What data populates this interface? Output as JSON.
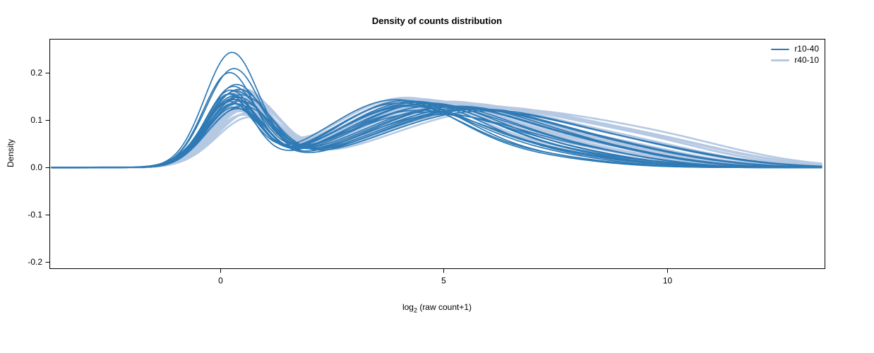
{
  "chart_data": {
    "type": "line",
    "title": "Density of counts distribution",
    "xlabel": "log2 (raw count+1)",
    "xlabel_parts": {
      "pre": "log",
      "sub": "2",
      "post": " (raw count+1)"
    },
    "ylabel": "Density",
    "xlim": [
      -3.82,
      13.52
    ],
    "ylim": [
      -0.213,
      0.272
    ],
    "xtick_values": [
      0,
      5,
      10
    ],
    "xtick_labels": [
      "0",
      "5",
      "10"
    ],
    "ytick_values": [
      -0.2,
      -0.1,
      0,
      0.1,
      0.2
    ],
    "ytick_labels": [
      "-0.2",
      "-0.1",
      "0.0",
      "0.1",
      "0.2"
    ],
    "grid": false,
    "legend_position": "top-right",
    "curve_model": "each curve = sum of three gaussian bumps [mean, sd, amplitude] * 3",
    "series": [
      {
        "name": "r10-40",
        "color": "#2f7ab5",
        "line_width": 1.7,
        "curves": [
          [
            0.25,
            0.6,
            0.235,
            4.6,
            1.9,
            0.115,
            8.0,
            1.6,
            0.02
          ],
          [
            0.3,
            0.62,
            0.205,
            4.9,
            1.8,
            0.11,
            8.3,
            1.5,
            0.025
          ],
          [
            0.2,
            0.58,
            0.195,
            4.4,
            1.7,
            0.12,
            7.8,
            1.4,
            0.02
          ],
          [
            0.35,
            0.65,
            0.17,
            5.1,
            1.9,
            0.125,
            8.6,
            1.6,
            0.03
          ],
          [
            0.28,
            0.6,
            0.165,
            4.2,
            1.6,
            0.13,
            7.5,
            1.5,
            0.025
          ],
          [
            0.4,
            0.7,
            0.16,
            5.4,
            2.0,
            0.12,
            8.9,
            1.7,
            0.03
          ],
          [
            0.22,
            0.57,
            0.158,
            4.0,
            1.5,
            0.135,
            7.2,
            1.4,
            0.02
          ],
          [
            0.33,
            0.63,
            0.155,
            4.7,
            1.8,
            0.128,
            8.1,
            1.5,
            0.028
          ],
          [
            0.18,
            0.55,
            0.15,
            4.5,
            1.7,
            0.132,
            7.9,
            1.6,
            0.022
          ],
          [
            0.45,
            0.72,
            0.148,
            5.6,
            2.1,
            0.118,
            9.2,
            1.8,
            0.035
          ],
          [
            0.27,
            0.6,
            0.145,
            4.3,
            1.6,
            0.138,
            7.6,
            1.5,
            0.02
          ],
          [
            0.38,
            0.66,
            0.142,
            5.0,
            1.9,
            0.125,
            8.4,
            1.6,
            0.03
          ],
          [
            0.24,
            0.58,
            0.14,
            4.1,
            1.5,
            0.14,
            7.3,
            1.4,
            0.018
          ],
          [
            0.31,
            0.62,
            0.138,
            4.8,
            1.8,
            0.13,
            8.2,
            1.5,
            0.026
          ],
          [
            0.42,
            0.7,
            0.135,
            5.3,
            2.0,
            0.122,
            8.8,
            1.7,
            0.032
          ],
          [
            0.2,
            0.56,
            0.133,
            3.9,
            1.5,
            0.142,
            7.1,
            1.4,
            0.018
          ],
          [
            0.35,
            0.64,
            0.13,
            5.2,
            1.9,
            0.126,
            8.5,
            1.6,
            0.028
          ],
          [
            0.26,
            0.59,
            0.128,
            4.4,
            1.7,
            0.136,
            7.7,
            1.5,
            0.022
          ],
          [
            0.48,
            0.74,
            0.125,
            5.7,
            2.1,
            0.115,
            9.4,
            1.8,
            0.034
          ],
          [
            0.29,
            0.61,
            0.122,
            4.6,
            1.7,
            0.134,
            7.9,
            1.5,
            0.024
          ],
          [
            0.37,
            0.66,
            0.12,
            5.5,
            2.0,
            0.12,
            9.0,
            1.7,
            0.03
          ],
          [
            0.23,
            0.57,
            0.15,
            4.2,
            1.6,
            0.128,
            7.4,
            1.4,
            0.02
          ]
        ]
      },
      {
        "name": "r40-10",
        "color": "#b6c9e3",
        "line_width": 2.6,
        "curves": [
          [
            0.5,
            0.68,
            0.155,
            4.8,
            1.9,
            0.135,
            8.5,
            1.7,
            0.04
          ],
          [
            0.55,
            0.7,
            0.15,
            5.2,
            2.0,
            0.13,
            8.9,
            1.8,
            0.045
          ],
          [
            0.45,
            0.66,
            0.148,
            4.5,
            1.8,
            0.14,
            8.1,
            1.6,
            0.035
          ],
          [
            0.6,
            0.72,
            0.145,
            5.5,
            2.1,
            0.125,
            9.3,
            1.8,
            0.05
          ],
          [
            0.42,
            0.65,
            0.142,
            4.3,
            1.7,
            0.142,
            7.8,
            1.6,
            0.035
          ],
          [
            0.58,
            0.71,
            0.138,
            5.0,
            1.9,
            0.135,
            8.7,
            1.7,
            0.042
          ],
          [
            0.48,
            0.67,
            0.135,
            4.6,
            1.8,
            0.138,
            8.3,
            1.6,
            0.038
          ],
          [
            0.65,
            0.74,
            0.132,
            5.8,
            2.1,
            0.12,
            9.6,
            1.9,
            0.05
          ],
          [
            0.4,
            0.64,
            0.13,
            4.1,
            1.6,
            0.145,
            7.5,
            1.5,
            0.032
          ],
          [
            0.55,
            0.7,
            0.128,
            5.3,
            2.0,
            0.128,
            9.0,
            1.8,
            0.045
          ],
          [
            0.5,
            0.68,
            0.125,
            4.9,
            1.9,
            0.134,
            8.6,
            1.7,
            0.04
          ],
          [
            0.62,
            0.73,
            0.122,
            5.6,
            2.1,
            0.122,
            9.4,
            1.8,
            0.048
          ],
          [
            0.44,
            0.66,
            0.12,
            4.4,
            1.7,
            0.14,
            8.0,
            1.6,
            0.035
          ],
          [
            0.57,
            0.7,
            0.118,
            5.1,
            1.9,
            0.13,
            8.8,
            1.7,
            0.042
          ],
          [
            0.47,
            0.67,
            0.115,
            4.7,
            1.8,
            0.136,
            8.4,
            1.6,
            0.038
          ],
          [
            0.68,
            0.75,
            0.112,
            6.0,
            2.2,
            0.115,
            9.8,
            1.9,
            0.052
          ],
          [
            0.41,
            0.64,
            0.11,
            4.2,
            1.6,
            0.143,
            7.6,
            1.5,
            0.03
          ],
          [
            0.6,
            0.72,
            0.108,
            5.4,
            2.0,
            0.125,
            9.1,
            1.8,
            0.046
          ],
          [
            0.52,
            0.69,
            0.105,
            5.0,
            1.9,
            0.132,
            8.7,
            1.7,
            0.04
          ],
          [
            0.46,
            0.66,
            0.103,
            4.5,
            1.7,
            0.138,
            8.2,
            1.6,
            0.036
          ],
          [
            0.64,
            0.73,
            0.1,
            5.7,
            2.1,
            0.118,
            9.5,
            1.9,
            0.05
          ],
          [
            0.54,
            0.69,
            0.115,
            4.8,
            1.8,
            0.134,
            8.5,
            1.7,
            0.04
          ]
        ]
      }
    ]
  }
}
